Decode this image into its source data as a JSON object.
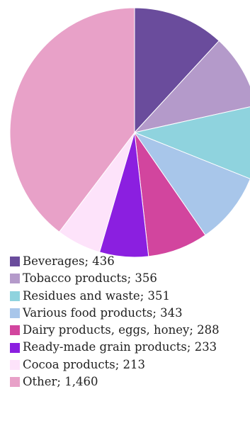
{
  "chart_data": {
    "type": "pie",
    "title": "",
    "start_angle_deg": 90,
    "direction": "clockwise",
    "slices": [
      {
        "label": "Beverages; 436",
        "category": "Beverages",
        "value": 436,
        "color": "#6A4C9C"
      },
      {
        "label": "Tobacco products; 356",
        "category": "Tobacco products",
        "value": 356,
        "color": "#B49ACA"
      },
      {
        "label": "Residues and waste; 351",
        "category": "Residues and waste",
        "value": 351,
        "color": "#8FD3DE"
      },
      {
        "label": "Various food products; 343",
        "category": "Various food products",
        "value": 343,
        "color": "#A8C6EA"
      },
      {
        "label": "Dairy products, eggs, honey; 288",
        "category": "Dairy products, eggs, honey",
        "value": 288,
        "color": "#D2459E"
      },
      {
        "label": "Ready-made grain products; 233",
        "category": "Ready-made grain products",
        "value": 233,
        "color": "#8B1FE0"
      },
      {
        "label": "Cocoa products; 213",
        "category": "Cocoa products",
        "value": 213,
        "color": "#FDE3FA"
      },
      {
        "label": "Other; 1,460",
        "category": "Other",
        "value": 1460,
        "color": "#E8A1C8"
      }
    ],
    "legend_position": "bottom-left"
  }
}
